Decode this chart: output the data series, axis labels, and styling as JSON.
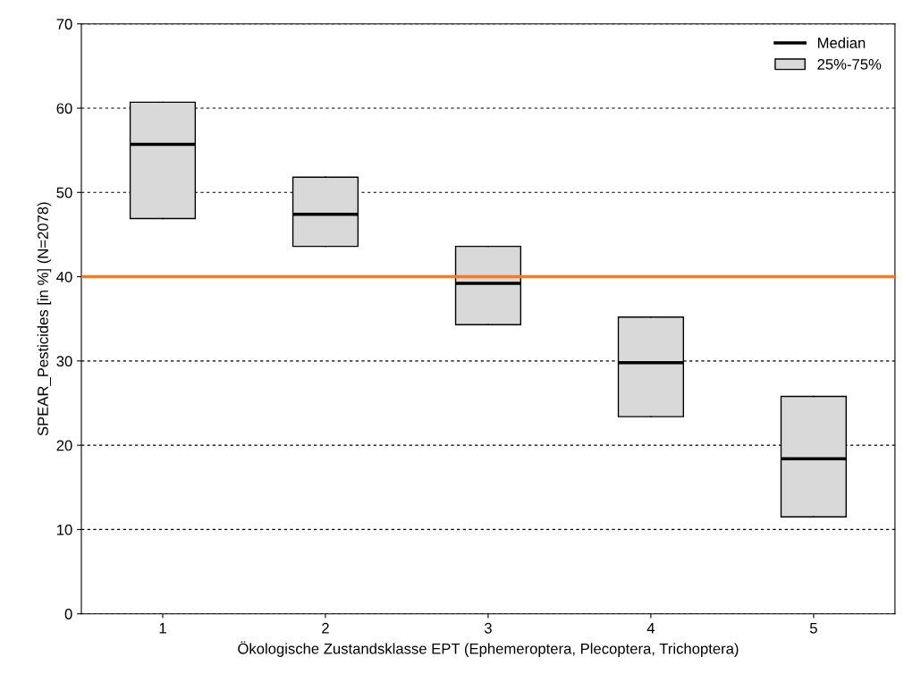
{
  "chart_data": {
    "type": "box",
    "xlabel": "Ökologische Zustandsklasse EPT (Ephemeroptera, Plecoptera, Trichoptera)",
    "ylabel": "SPEAR_Pesticides [in %] (N=2078)",
    "categories": [
      "1",
      "2",
      "3",
      "4",
      "5"
    ],
    "series": [
      {
        "name": "25%-75%",
        "color": "#d9d9d9",
        "boxes": [
          {
            "low": 46.9,
            "q1": 46.9,
            "median": 55.7,
            "q3": 60.7,
            "high": 60.7
          },
          {
            "low": 43.6,
            "q1": 43.6,
            "median": 47.4,
            "q3": 51.8,
            "high": 51.8
          },
          {
            "low": 34.3,
            "q1": 34.3,
            "median": 39.2,
            "q3": 43.6,
            "high": 43.6
          },
          {
            "low": 23.4,
            "q1": 23.4,
            "median": 29.8,
            "q3": 35.2,
            "high": 35.2
          },
          {
            "low": 11.5,
            "q1": 11.5,
            "median": 18.4,
            "q3": 25.8,
            "high": 25.8
          }
        ]
      }
    ],
    "annotations": [
      "Median"
    ],
    "ylim": [
      0,
      70
    ],
    "yticks": [
      0,
      10,
      20,
      30,
      40,
      50,
      60,
      70
    ],
    "ref_lines": [
      {
        "axis": "y",
        "value": 40,
        "color": "#ed7d31"
      }
    ],
    "grid": "y",
    "legend": "top right"
  }
}
